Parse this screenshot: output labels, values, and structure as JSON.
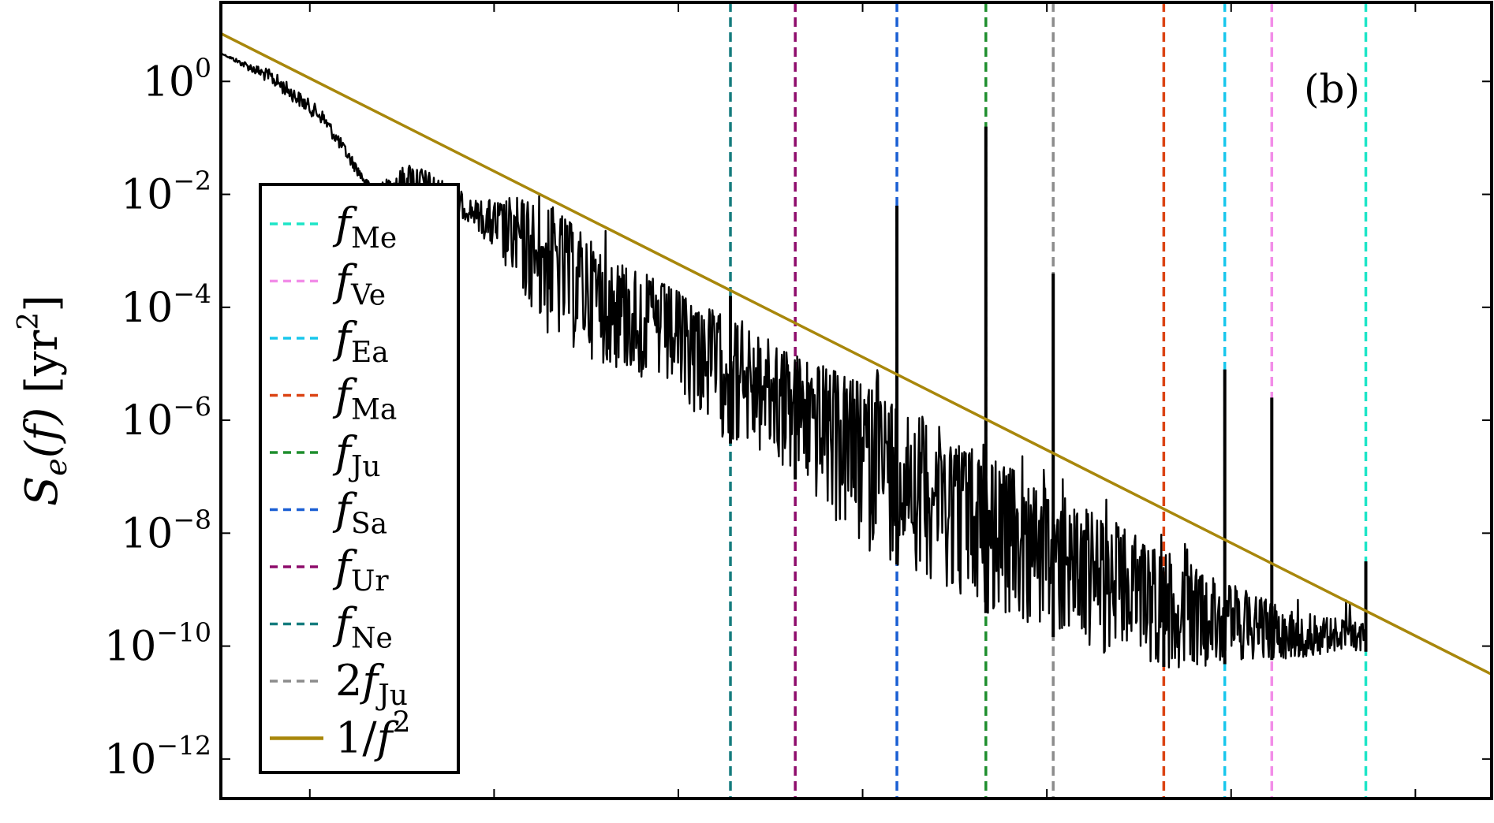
{
  "chart_data": {
    "type": "line",
    "panel_label": "(b)",
    "ylabel": {
      "symbol": "S",
      "subscript": "e",
      "argument": "(f)",
      "unit": "[yr",
      "unit_power": "2",
      "unit_close": "]"
    },
    "yscale": "log",
    "ylim_exp": [
      -12.7,
      1.4
    ],
    "y_ticks": [
      {
        "base": "10",
        "exp": "0",
        "value": 1
      },
      {
        "base": "10",
        "exp": "−2",
        "value": 0.01
      },
      {
        "base": "10",
        "exp": "−4",
        "value": 0.0001
      },
      {
        "base": "10",
        "exp": "−6",
        "value": 1e-06
      },
      {
        "base": "10",
        "exp": "−8",
        "value": 1e-08
      },
      {
        "base": "10",
        "exp": "−10",
        "value": 1e-10
      },
      {
        "base": "10",
        "exp": "−12",
        "value": 1e-12
      }
    ],
    "xscale": "log",
    "x_tick_labels": [],
    "series": [
      {
        "name": "S_e(f)",
        "role": "spectrum",
        "color": "#000000"
      },
      {
        "name": "1/f²",
        "role": "reference_line",
        "color": "#A8870B",
        "slope_decades": -2
      }
    ],
    "spectrum_envelope": [
      {
        "xf": 0.0,
        "e": 0.5,
        "lo": 0.5
      },
      {
        "xf": 0.04,
        "e": 0.2,
        "lo": -0.1
      },
      {
        "xf": 0.08,
        "e": -0.5,
        "lo": -0.8
      },
      {
        "xf": 0.12,
        "e": -1.9,
        "lo": -2.1
      },
      {
        "xf": 0.15,
        "e": -1.4,
        "lo": -2.0
      },
      {
        "xf": 0.2,
        "e": -2.1,
        "lo": -2.6
      },
      {
        "xf": 0.25,
        "e": -2.0,
        "lo": -4.5
      },
      {
        "xf": 0.3,
        "e": -3.0,
        "lo": -5.0
      },
      {
        "xf": 0.35,
        "e": -3.6,
        "lo": -5.5
      },
      {
        "xf": 0.4,
        "e": -4.2,
        "lo": -6.4
      },
      {
        "xf": 0.45,
        "e": -4.8,
        "lo": -7.0
      },
      {
        "xf": 0.5,
        "e": -5.3,
        "lo": -8.3
      },
      {
        "xf": 0.55,
        "e": -5.9,
        "lo": -8.7
      },
      {
        "xf": 0.6,
        "e": -6.6,
        "lo": -9.4
      },
      {
        "xf": 0.65,
        "e": -7.2,
        "lo": -9.8
      },
      {
        "xf": 0.7,
        "e": -7.8,
        "lo": -10.2
      },
      {
        "xf": 0.75,
        "e": -8.4,
        "lo": -10.4
      },
      {
        "xf": 0.8,
        "e": -9.0,
        "lo": -10.3
      },
      {
        "xf": 0.85,
        "e": -9.4,
        "lo": -10.2
      },
      {
        "xf": 0.901,
        "e": -9.6,
        "lo": -10.1
      }
    ],
    "reference_line": {
      "xf_start": 0.0,
      "e_start": 0.85,
      "xf_end": 1.0,
      "e_end": -10.5
    },
    "frequency_lines": [
      {
        "label_prefix": "",
        "symbol": "f",
        "sub": "Me",
        "color": "#1DE5C7",
        "xf": 0.901,
        "peak_e": -8.5
      },
      {
        "label_prefix": "",
        "symbol": "f",
        "sub": "Ve",
        "color": "#F28DE8",
        "xf": 0.827,
        "peak_e": -5.6
      },
      {
        "label_prefix": "",
        "symbol": "f",
        "sub": "Ea",
        "color": "#19C7EC",
        "xf": 0.79,
        "peak_e": -5.1
      },
      {
        "label_prefix": "",
        "symbol": "f",
        "sub": "Ma",
        "color": "#DB4313",
        "xf": 0.742,
        "peak_e": -9.3
      },
      {
        "label_prefix": "",
        "symbol": "f",
        "sub": "Ju",
        "color": "#1E8E2D",
        "xf": 0.602,
        "peak_e": -0.8
      },
      {
        "label_prefix": "",
        "symbol": "f",
        "sub": "Sa",
        "color": "#1A5FD3",
        "xf": 0.532,
        "peak_e": -2.2
      },
      {
        "label_prefix": "",
        "symbol": "f",
        "sub": "Ur",
        "color": "#8E0C6B",
        "xf": 0.452,
        "peak_e": -5.1
      },
      {
        "label_prefix": "",
        "symbol": "f",
        "sub": "Ne",
        "color": "#157C7E",
        "xf": 0.401,
        "peak_e": -3.8
      },
      {
        "label_prefix": "2",
        "symbol": "f",
        "sub": "Ju",
        "color": "#8C8C8C",
        "xf": 0.655,
        "peak_e": -3.4
      }
    ],
    "legend": {
      "placement": "left-middle",
      "entries": [
        {
          "prefix": "",
          "symbol": "f",
          "sub": "Me",
          "sup": "",
          "color": "#1DE5C7",
          "style": "dashed"
        },
        {
          "prefix": "",
          "symbol": "f",
          "sub": "Ve",
          "sup": "",
          "color": "#F28DE8",
          "style": "dashed"
        },
        {
          "prefix": "",
          "symbol": "f",
          "sub": "Ea",
          "sup": "",
          "color": "#19C7EC",
          "style": "dashed"
        },
        {
          "prefix": "",
          "symbol": "f",
          "sub": "Ma",
          "sup": "",
          "color": "#DB4313",
          "style": "dashed"
        },
        {
          "prefix": "",
          "symbol": "f",
          "sub": "Ju",
          "sup": "",
          "color": "#1E8E2D",
          "style": "dashed"
        },
        {
          "prefix": "",
          "symbol": "f",
          "sub": "Sa",
          "sup": "",
          "color": "#1A5FD3",
          "style": "dashed"
        },
        {
          "prefix": "",
          "symbol": "f",
          "sub": "Ur",
          "sup": "",
          "color": "#8E0C6B",
          "style": "dashed"
        },
        {
          "prefix": "",
          "symbol": "f",
          "sub": "Ne",
          "sup": "",
          "color": "#157C7E",
          "style": "dashed"
        },
        {
          "prefix": "2",
          "symbol": "f",
          "sub": "Ju",
          "sup": "",
          "color": "#8C8C8C",
          "style": "dashed"
        },
        {
          "prefix": "1/",
          "symbol": "f",
          "sub": "",
          "sup": "2",
          "color": "#A8870B",
          "style": "solid"
        }
      ]
    },
    "grid": false
  }
}
